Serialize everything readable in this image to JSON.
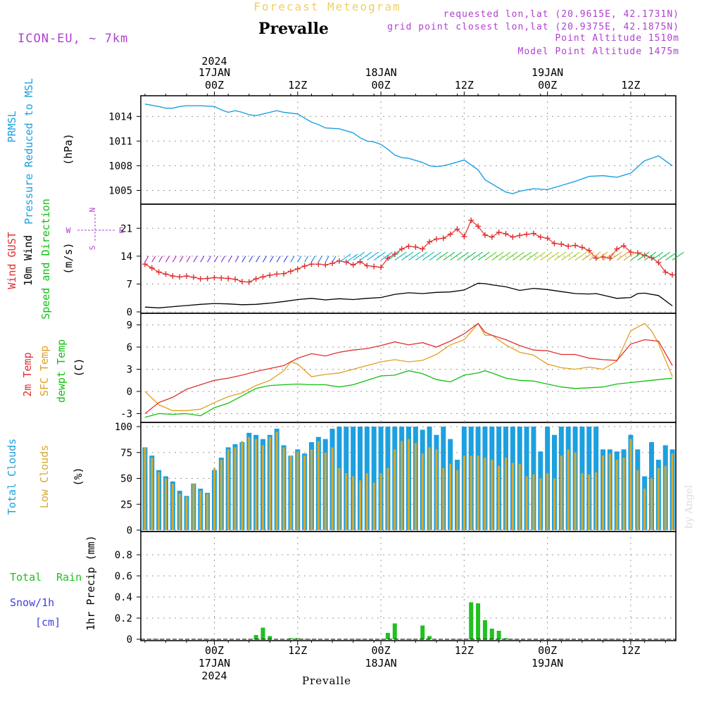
{
  "header": {
    "subtitle": "Forecast Meteogram",
    "location": "Prevalle",
    "model": "ICON-EU, ~ 7km",
    "requested": "requested lon,lat (20.9615E, 42.1731N)",
    "gridpoint": "grid point closest lon,lat (20.9375E, 42.1875N)",
    "point_alt": "Point Altitude 1510m",
    "model_alt": "Model Point Altitude 1475m",
    "footer": "Prevalle",
    "credit": "by Angel"
  },
  "x_axis": {
    "top_labels": [
      {
        "line1": "2024",
        "line2": "17JAN",
        "line3": "00Z"
      },
      {
        "line3": "12Z"
      },
      {
        "line2": "18JAN",
        "line3": "00Z"
      },
      {
        "line3": "12Z"
      },
      {
        "line2": "19JAN",
        "line3": "00Z"
      },
      {
        "line3": "12Z"
      }
    ],
    "bottom_labels": [
      {
        "line1": "00Z",
        "line2": "17JAN",
        "line3": "2024"
      },
      {
        "line1": "12Z"
      },
      {
        "line1": "00Z",
        "line2": "18JAN"
      },
      {
        "line1": "12Z"
      },
      {
        "line1": "00Z",
        "line2": "19JAN"
      },
      {
        "line1": "12Z"
      }
    ]
  },
  "panel_labels": {
    "pressure": [
      "PRMSL",
      "Pressure Reduced to MSL",
      "(hPa)"
    ],
    "wind": [
      "Wind GUST",
      "10m Wind",
      "Speed and Direction",
      "(m/s)"
    ],
    "compass": {
      "n": "N",
      "s": "S",
      "w": "W",
      "e": "E"
    },
    "temp": [
      "2m Temp",
      "SFC Temp",
      "dewpt Temp",
      "(C)"
    ],
    "clouds": [
      "Total Clouds",
      "Low Clouds",
      "(%)"
    ],
    "precip": [
      "Total",
      "Rain",
      "Snow/1h",
      "[cm]",
      "1hr Precip (mm)"
    ]
  },
  "colors": {
    "pressure": "#1ca0e0",
    "gust": "#e03030",
    "wind": "#000000",
    "temp2m": "#e03030",
    "sfc": "#e0a020",
    "dew": "#10c010",
    "total_cloud": "#1ca0e0",
    "low_cloud": "#d4a830",
    "rain": "#20c020",
    "meta": "#b040d0"
  },
  "chart_data": [
    {
      "type": "line",
      "title": "PRMSL Pressure Reduced to MSL",
      "ylabel": "(hPa)",
      "x_unit": "hours from 16JAN 14Z",
      "ylim": [
        1003.5,
        1016
      ],
      "yticks": [
        1005,
        1008,
        1011,
        1014
      ],
      "series": [
        {
          "name": "PRMSL",
          "x": [
            0,
            2,
            3,
            4,
            5,
            6,
            8,
            10,
            11,
            12,
            13,
            14,
            15,
            16,
            17,
            18,
            19,
            20,
            22,
            23,
            24,
            25,
            26,
            28,
            30,
            31,
            32,
            33,
            34,
            35,
            36,
            37,
            38,
            40,
            41,
            42,
            43,
            44,
            46,
            48,
            49,
            50,
            51,
            52,
            53,
            54,
            56,
            58,
            60,
            62,
            64,
            66,
            68,
            70,
            72,
            74,
            76
          ],
          "y": [
            1015.5,
            1015.2,
            1015.0,
            1015.0,
            1015.2,
            1015.3,
            1015.3,
            1015.2,
            1014.8,
            1014.5,
            1014.7,
            1014.5,
            1014.2,
            1014.1,
            1014.3,
            1014.5,
            1014.7,
            1014.5,
            1014.3,
            1013.8,
            1013.3,
            1013.0,
            1012.6,
            1012.5,
            1012.0,
            1011.4,
            1011.0,
            1010.9,
            1010.6,
            1010.0,
            1009.3,
            1009.0,
            1008.9,
            1008.4,
            1008.0,
            1007.9,
            1008.0,
            1008.2,
            1008.7,
            1007.5,
            1006.3,
            1005.8,
            1005.3,
            1004.8,
            1004.6,
            1004.9,
            1005.2,
            1005.1,
            1005.6,
            1006.1,
            1006.7,
            1006.8,
            1006.6,
            1007.1,
            1008.6,
            1009.2,
            1008.0
          ]
        }
      ]
    },
    {
      "type": "line",
      "title": "Wind GUST / 10m Wind Speed and Direction",
      "ylabel": "(m/s)",
      "ylim": [
        0,
        26
      ],
      "yticks": [
        0,
        7,
        14,
        21
      ],
      "series": [
        {
          "name": "Wind GUST",
          "x": [
            0,
            1,
            2,
            3,
            4,
            5,
            6,
            7,
            8,
            9,
            10,
            11,
            12,
            13,
            14,
            15,
            16,
            17,
            18,
            19,
            20,
            21,
            22,
            23,
            24,
            25,
            26,
            27,
            28,
            29,
            30,
            31,
            32,
            33,
            34,
            35,
            36,
            37,
            38,
            39,
            40,
            41,
            42,
            43,
            44,
            45,
            46,
            47,
            48,
            49,
            50,
            51,
            52,
            53,
            54,
            55,
            56,
            57,
            58,
            59,
            60,
            61,
            62,
            63,
            64,
            65,
            66,
            67,
            68,
            69,
            70,
            71,
            72,
            73,
            74,
            75,
            76
          ],
          "y": [
            12,
            11,
            10,
            9.5,
            9,
            8.8,
            9,
            8.7,
            8.3,
            8.4,
            8.6,
            8.5,
            8.4,
            8.2,
            7.6,
            7.5,
            8.3,
            8.8,
            9.2,
            9.5,
            9.6,
            10.2,
            10.8,
            11.5,
            12,
            12,
            11.8,
            12.2,
            12.8,
            12.5,
            11.8,
            12.6,
            11.6,
            11.4,
            11.2,
            13.5,
            14.5,
            15.8,
            16.5,
            16.3,
            15.8,
            17.6,
            18.3,
            18.5,
            19.5,
            20.8,
            18.9,
            23,
            21.5,
            19.3,
            18.8,
            20,
            19.6,
            18.8,
            19.2,
            19.5,
            19.7,
            18.8,
            18.5,
            17.2,
            17,
            16.5,
            16.7,
            16.2,
            15.4,
            13.5,
            13.8,
            13.5,
            15.8,
            16.6,
            15,
            14.8,
            14.2,
            13.6,
            12.4,
            10,
            9.3
          ]
        },
        {
          "name": "10m Wind",
          "x": [
            0,
            2,
            4,
            6,
            8,
            10,
            12,
            14,
            16,
            18,
            20,
            22,
            24,
            26,
            28,
            30,
            32,
            34,
            35,
            36,
            37,
            38,
            40,
            42,
            44,
            46,
            48,
            49,
            50,
            52,
            54,
            56,
            58,
            60,
            62,
            64,
            65,
            66,
            68,
            70,
            71,
            72,
            74,
            76
          ],
          "y": [
            1.2,
            1.0,
            1.3,
            1.6,
            1.9,
            2.1,
            2.0,
            1.8,
            1.9,
            2.2,
            2.6,
            3.1,
            3.4,
            3.0,
            3.3,
            3.1,
            3.4,
            3.6,
            4.0,
            4.4,
            4.6,
            4.8,
            4.6,
            4.9,
            5.0,
            5.5,
            7.2,
            7.1,
            6.8,
            6.3,
            5.4,
            5.9,
            5.6,
            5.1,
            4.6,
            4.5,
            4.6,
            4.2,
            3.4,
            3.6,
            4.6,
            4.7,
            4.1,
            1.5
          ]
        }
      ]
    },
    {
      "type": "line",
      "title": "2m Temp / SFC Temp / dewpt Temp",
      "ylabel": "(C)",
      "ylim": [
        -4,
        10
      ],
      "yticks": [
        -3,
        0,
        3,
        6,
        9
      ],
      "series": [
        {
          "name": "2m Temp",
          "x": [
            0,
            2,
            4,
            6,
            8,
            10,
            12,
            14,
            16,
            18,
            20,
            22,
            24,
            26,
            28,
            30,
            32,
            34,
            36,
            38,
            40,
            42,
            44,
            46,
            48,
            49,
            50,
            52,
            54,
            56,
            58,
            60,
            62,
            64,
            66,
            68,
            70,
            72,
            74,
            76
          ],
          "y": [
            -3,
            -1.5,
            -0.8,
            0.3,
            0.9,
            1.5,
            1.8,
            2.2,
            2.7,
            3.1,
            3.5,
            4.5,
            5.1,
            4.8,
            5.3,
            5.6,
            5.8,
            6.2,
            6.7,
            6.3,
            6.6,
            6.0,
            6.8,
            7.8,
            9.2,
            8.0,
            7.6,
            7.0,
            6.2,
            5.6,
            5.5,
            5.0,
            5.0,
            4.5,
            4.3,
            4.2,
            6.4,
            7.0,
            6.8,
            3.5
          ]
        },
        {
          "name": "SFC Temp",
          "x": [
            0,
            2,
            4,
            6,
            8,
            10,
            12,
            14,
            16,
            18,
            20,
            21,
            22,
            24,
            26,
            28,
            30,
            32,
            34,
            36,
            38,
            40,
            42,
            44,
            46,
            48,
            49,
            50,
            52,
            54,
            56,
            58,
            60,
            62,
            64,
            66,
            68,
            70,
            72,
            73,
            74,
            76
          ],
          "y": [
            0,
            -1.8,
            -2.6,
            -2.6,
            -2.4,
            -1.5,
            -0.7,
            -0.2,
            0.8,
            1.5,
            2.8,
            4.0,
            3.7,
            2.0,
            2.3,
            2.5,
            3.0,
            3.5,
            4.0,
            4.3,
            4.0,
            4.2,
            5.0,
            6.3,
            7.0,
            9.2,
            7.6,
            7.6,
            6.3,
            5.3,
            4.9,
            3.7,
            3.2,
            3.0,
            3.3,
            3.0,
            4.1,
            8.2,
            9.2,
            8.2,
            6.5,
            2.0
          ]
        },
        {
          "name": "dewpt Temp",
          "x": [
            0,
            2,
            4,
            6,
            8,
            10,
            12,
            14,
            16,
            18,
            20,
            22,
            24,
            26,
            28,
            30,
            32,
            34,
            36,
            38,
            40,
            42,
            44,
            46,
            48,
            49,
            50,
            52,
            54,
            56,
            58,
            60,
            62,
            64,
            66,
            68,
            70,
            72,
            74,
            76
          ],
          "y": [
            -3.5,
            -3.0,
            -3.1,
            -3.0,
            -3.3,
            -2.2,
            -1.6,
            -0.6,
            0.4,
            0.8,
            0.9,
            1.0,
            0.9,
            0.9,
            0.6,
            0.9,
            1.5,
            2.1,
            2.2,
            2.8,
            2.4,
            1.6,
            1.3,
            2.2,
            2.5,
            2.8,
            2.5,
            1.8,
            1.5,
            1.4,
            1.0,
            0.6,
            0.4,
            0.5,
            0.6,
            1.0,
            1.2,
            1.4,
            1.6,
            1.8
          ]
        }
      ]
    },
    {
      "type": "bar",
      "title": "Total Clouds / Low Clouds",
      "ylabel": "(%)",
      "ylim": [
        0,
        100
      ],
      "yticks": [
        0,
        25,
        50,
        75,
        100
      ],
      "x": [
        0,
        1,
        2,
        3,
        4,
        5,
        6,
        7,
        8,
        9,
        10,
        11,
        12,
        13,
        14,
        15,
        16,
        17,
        18,
        19,
        20,
        21,
        22,
        23,
        24,
        25,
        26,
        27,
        28,
        29,
        30,
        31,
        32,
        33,
        34,
        35,
        36,
        37,
        38,
        39,
        40,
        41,
        42,
        43,
        44,
        45,
        46,
        47,
        48,
        49,
        50,
        51,
        52,
        53,
        54,
        55,
        56,
        57,
        58,
        59,
        60,
        61,
        62,
        63,
        64,
        65,
        66,
        67,
        68,
        69,
        70,
        71,
        72,
        73,
        74,
        75,
        76
      ],
      "series": [
        {
          "name": "Total Clouds",
          "values": [
            80,
            72,
            58,
            52,
            47,
            38,
            33,
            45,
            40,
            36,
            58,
            70,
            80,
            83,
            85,
            94,
            92,
            88,
            92,
            98,
            82,
            72,
            78,
            74,
            85,
            90,
            88,
            98,
            100,
            100,
            100,
            100,
            100,
            100,
            100,
            100,
            100,
            100,
            100,
            100,
            97,
            100,
            92,
            100,
            88,
            68,
            100,
            100,
            100,
            100,
            100,
            100,
            100,
            100,
            100,
            100,
            100,
            76,
            100,
            92,
            100,
            100,
            100,
            100,
            100,
            100,
            78,
            78,
            76,
            78,
            92,
            78,
            52,
            85,
            68,
            82,
            78
          ]
        },
        {
          "name": "Low Clouds",
          "values": [
            80,
            70,
            56,
            50,
            45,
            35,
            32,
            45,
            38,
            35,
            60,
            68,
            78,
            80,
            86,
            90,
            88,
            82,
            90,
            95,
            80,
            72,
            76,
            72,
            78,
            86,
            75,
            80,
            60,
            55,
            52,
            48,
            55,
            46,
            55,
            60,
            78,
            86,
            88,
            84,
            74,
            80,
            78,
            60,
            64,
            58,
            72,
            72,
            72,
            70,
            68,
            62,
            70,
            65,
            64,
            52,
            54,
            50,
            55,
            50,
            72,
            78,
            75,
            55,
            54,
            56,
            72,
            74,
            68,
            70,
            88,
            58,
            40,
            50,
            60,
            62,
            74
          ]
        }
      ]
    },
    {
      "type": "bar",
      "title": "1hr Precip (mm)",
      "ylabel": "1hr Precip (mm)",
      "ylim": [
        0,
        0.98
      ],
      "yticks": [
        0,
        0.2,
        0.4,
        0.6,
        0.8
      ],
      "series": [
        {
          "name": "Total Rain",
          "x": [
            16,
            17,
            18,
            21,
            22,
            35,
            36,
            40,
            41,
            47,
            48,
            49,
            50,
            51,
            52
          ],
          "values": [
            0.04,
            0.11,
            0.03,
            0.01,
            0.01,
            0.06,
            0.15,
            0.13,
            0.03,
            0.35,
            0.34,
            0.18,
            0.1,
            0.08,
            0.01
          ]
        }
      ]
    }
  ]
}
